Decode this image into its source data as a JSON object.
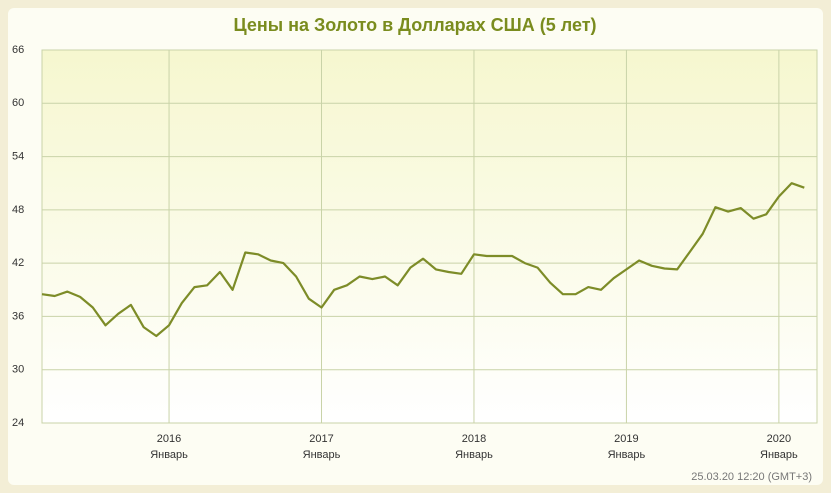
{
  "chart_data": {
    "type": "line",
    "title": "Цены на Золото в Долларах США (5 лет)",
    "footnote": "25.03.20 12:20 (GMT+3)",
    "x": [
      "2015-03",
      "2015-04",
      "2015-05",
      "2015-06",
      "2015-07",
      "2015-08",
      "2015-09",
      "2015-10",
      "2015-11",
      "2015-12",
      "2016-01",
      "2016-02",
      "2016-03",
      "2016-04",
      "2016-05",
      "2016-06",
      "2016-07",
      "2016-08",
      "2016-09",
      "2016-10",
      "2016-11",
      "2016-12",
      "2017-01",
      "2017-02",
      "2017-03",
      "2017-04",
      "2017-05",
      "2017-06",
      "2017-07",
      "2017-08",
      "2017-09",
      "2017-10",
      "2017-11",
      "2017-12",
      "2018-01",
      "2018-02",
      "2018-03",
      "2018-04",
      "2018-05",
      "2018-06",
      "2018-07",
      "2018-08",
      "2018-09",
      "2018-10",
      "2018-11",
      "2018-12",
      "2019-01",
      "2019-02",
      "2019-03",
      "2019-04",
      "2019-05",
      "2019-06",
      "2019-07",
      "2019-08",
      "2019-09",
      "2019-10",
      "2019-11",
      "2019-12",
      "2020-01",
      "2020-02",
      "2020-03"
    ],
    "series": [
      {
        "color": "#7d8c28",
        "values": [
          38.5,
          38.3,
          38.8,
          38.2,
          37.0,
          35.0,
          36.3,
          37.3,
          34.8,
          33.8,
          35.0,
          37.5,
          39.3,
          39.5,
          41.0,
          39.0,
          43.2,
          43.0,
          42.3,
          42.0,
          40.5,
          38.0,
          37.0,
          39.0,
          39.5,
          40.5,
          40.2,
          40.5,
          39.5,
          41.5,
          42.5,
          41.3,
          41.0,
          40.8,
          43.0,
          42.8,
          42.8,
          42.8,
          42.0,
          41.5,
          39.8,
          38.5,
          38.5,
          39.3,
          39.0,
          40.3,
          41.3,
          42.3,
          41.7,
          41.4,
          41.3,
          43.3,
          45.3,
          48.3,
          47.8,
          48.2,
          47.0,
          47.5,
          49.5,
          51.0,
          50.5
        ]
      }
    ],
    "xlim": [
      "2015-03",
      "2020-04"
    ],
    "xticks": [
      {
        "value": "2016-01",
        "label": "2016",
        "sublabel": "Январь"
      },
      {
        "value": "2017-01",
        "label": "2017",
        "sublabel": "Январь"
      },
      {
        "value": "2018-01",
        "label": "2018",
        "sublabel": "Январь"
      },
      {
        "value": "2019-01",
        "label": "2019",
        "sublabel": "Январь"
      },
      {
        "value": "2020-01",
        "label": "2020",
        "sublabel": "Январь"
      }
    ],
    "ylim": [
      24,
      66
    ],
    "yticks": [
      24,
      30,
      36,
      42,
      48,
      54,
      60,
      66
    ],
    "grid": true
  }
}
